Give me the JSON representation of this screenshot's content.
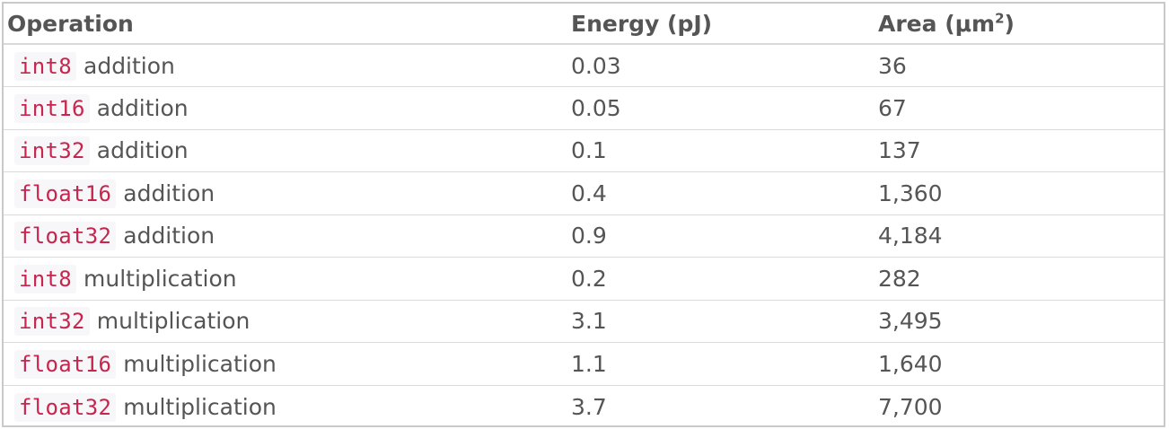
{
  "table": {
    "headers": {
      "operation": "Operation",
      "energy": "Energy (pJ)",
      "area_prefix": "Area (μm",
      "area_sup": "2",
      "area_suffix": ")"
    },
    "rows": [
      {
        "dtype": "int8",
        "op": "addition",
        "energy": "0.03",
        "area": "36"
      },
      {
        "dtype": "int16",
        "op": "addition",
        "energy": "0.05",
        "area": "67"
      },
      {
        "dtype": "int32",
        "op": "addition",
        "energy": "0.1",
        "area": "137"
      },
      {
        "dtype": "float16",
        "op": "addition",
        "energy": "0.4",
        "area": "1,360"
      },
      {
        "dtype": "float32",
        "op": "addition",
        "energy": "0.9",
        "area": "4,184"
      },
      {
        "dtype": "int8",
        "op": "multiplication",
        "energy": "0.2",
        "area": "282"
      },
      {
        "dtype": "int32",
        "op": "multiplication",
        "energy": "3.1",
        "area": "3,495"
      },
      {
        "dtype": "float16",
        "op": "multiplication",
        "energy": "1.1",
        "area": "1,640"
      },
      {
        "dtype": "float32",
        "op": "multiplication",
        "energy": "3.7",
        "area": "7,700"
      }
    ]
  },
  "colors": {
    "code_text": "#c7254e",
    "code_bg": "#f7f7f9",
    "body_text": "#555555"
  }
}
